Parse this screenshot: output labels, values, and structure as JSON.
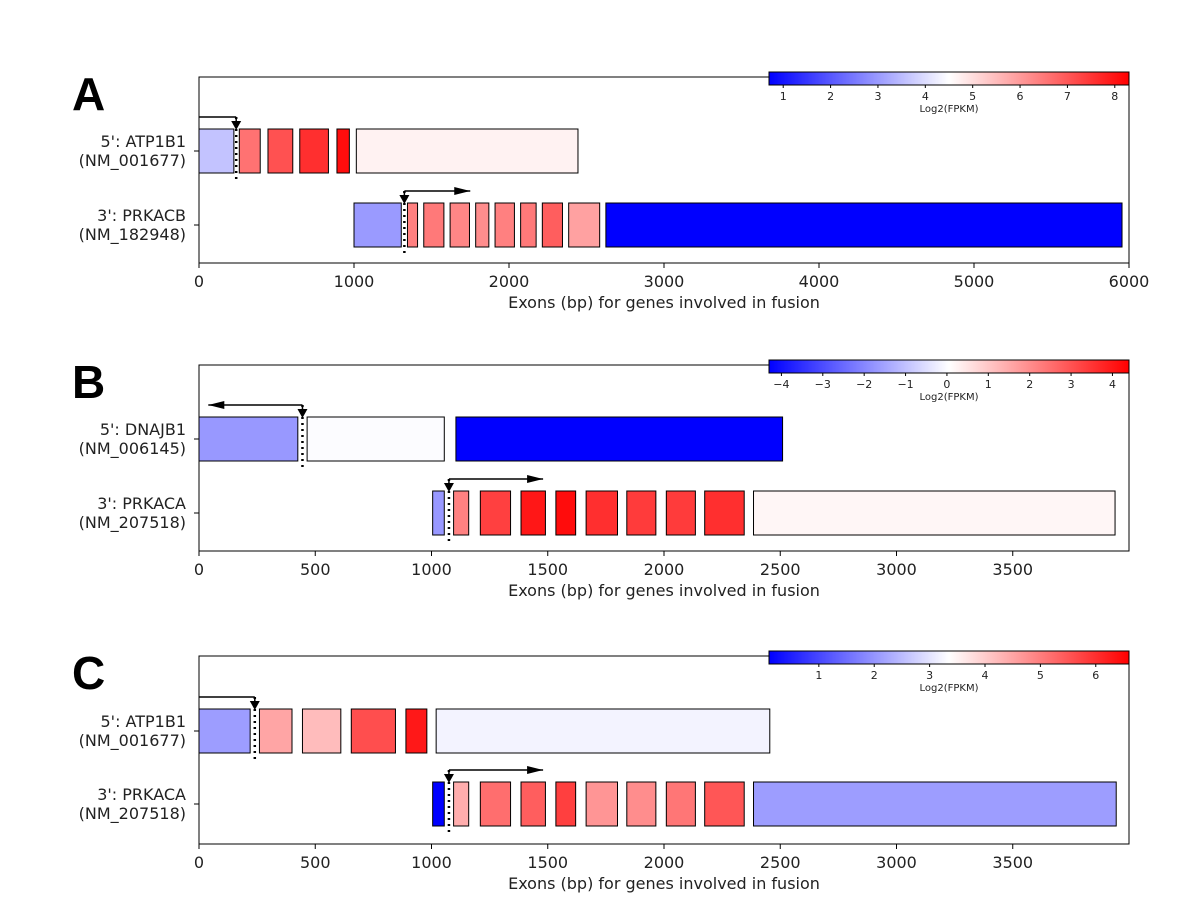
{
  "colormap": {
    "low": "#0000ff",
    "mid": "#ffffff",
    "high": "#ff0000"
  },
  "chart_data": [
    {
      "type": "exon-fusion-diagram",
      "panel": "A",
      "xlabel": "Exons (bp) for genes involved in fusion",
      "xlim": [
        0,
        6000
      ],
      "xticks": [
        0,
        1000,
        2000,
        3000,
        4000,
        5000,
        6000
      ],
      "xtick_labels": [
        "0",
        "1000",
        "2000",
        "3000",
        "4000",
        "5000",
        "6000"
      ],
      "colorbar": {
        "label": "Log2(FPKM)",
        "range": [
          0.7,
          8.3
        ],
        "ticks": [
          1,
          2,
          3,
          4,
          5,
          6,
          7,
          8
        ],
        "tick_labels": [
          "1",
          "2",
          "3",
          "4",
          "5",
          "6",
          "7",
          "8"
        ]
      },
      "genes": [
        {
          "label_line1": "5': ATP1B1",
          "label_line2": "(NM_001677)",
          "breakpoint": 240,
          "arrow": {
            "from": 0,
            "to": 240,
            "direction": "right"
          },
          "exons": [
            {
              "start": 0,
              "end": 225,
              "value": 3.6
            },
            {
              "start": 260,
              "end": 395,
              "value": 6.6
            },
            {
              "start": 445,
              "end": 605,
              "value": 7.1
            },
            {
              "start": 650,
              "end": 835,
              "value": 7.6
            },
            {
              "start": 890,
              "end": 970,
              "value": 8.1
            },
            {
              "start": 1015,
              "end": 2445,
              "value": 4.7
            }
          ]
        },
        {
          "label_line1": "3': PRKACB",
          "label_line2": "(NM_182948)",
          "breakpoint": 1325,
          "arrow": {
            "from": 1325,
            "to": 1750,
            "direction": "right"
          },
          "exons": [
            {
              "start": 1000,
              "end": 1305,
              "value": 3.0
            },
            {
              "start": 1345,
              "end": 1410,
              "value": 6.4
            },
            {
              "start": 1450,
              "end": 1580,
              "value": 6.5
            },
            {
              "start": 1620,
              "end": 1745,
              "value": 6.3
            },
            {
              "start": 1785,
              "end": 1870,
              "value": 6.2
            },
            {
              "start": 1910,
              "end": 2035,
              "value": 6.4
            },
            {
              "start": 2075,
              "end": 2175,
              "value": 6.5
            },
            {
              "start": 2215,
              "end": 2345,
              "value": 6.9
            },
            {
              "start": 2385,
              "end": 2585,
              "value": 5.9
            },
            {
              "start": 2625,
              "end": 5955,
              "value": 0.7
            }
          ]
        }
      ]
    },
    {
      "type": "exon-fusion-diagram",
      "panel": "B",
      "xlabel": "Exons (bp) for genes involved in fusion",
      "xlim": [
        0,
        4000
      ],
      "xticks": [
        0,
        500,
        1000,
        1500,
        2000,
        2500,
        3000,
        3500
      ],
      "xtick_labels": [
        "0",
        "500",
        "1000",
        "1500",
        "2000",
        "2500",
        "3000",
        "3500"
      ],
      "colorbar": {
        "label": "Log2(FPKM)",
        "range": [
          -4.3,
          4.4
        ],
        "ticks": [
          -4,
          -3,
          -2,
          -1,
          0,
          1,
          2,
          3,
          4
        ],
        "tick_labels": [
          "−4",
          "−3",
          "−2",
          "−1",
          "0",
          "1",
          "2",
          "3",
          "4"
        ]
      },
      "genes": [
        {
          "label_line1": "5': DNAJB1",
          "label_line2": "(NM_006145)",
          "breakpoint": 445,
          "arrow": {
            "from": 445,
            "to": 40,
            "direction": "left"
          },
          "exons": [
            {
              "start": 0,
              "end": 425,
              "value": -1.7
            },
            {
              "start": 465,
              "end": 1055,
              "value": 0.0
            },
            {
              "start": 1105,
              "end": 2510,
              "value": -4.3
            }
          ]
        },
        {
          "label_line1": "3': PRKACA",
          "label_line2": "(NM_207518)",
          "breakpoint": 1075,
          "arrow": {
            "from": 1075,
            "to": 1480,
            "direction": "right"
          },
          "exons": [
            {
              "start": 1005,
              "end": 1055,
              "value": -1.7
            },
            {
              "start": 1095,
              "end": 1160,
              "value": 2.2
            },
            {
              "start": 1210,
              "end": 1340,
              "value": 3.3
            },
            {
              "start": 1385,
              "end": 1490,
              "value": 4.0
            },
            {
              "start": 1535,
              "end": 1620,
              "value": 4.2
            },
            {
              "start": 1665,
              "end": 1800,
              "value": 3.6
            },
            {
              "start": 1840,
              "end": 1965,
              "value": 3.4
            },
            {
              "start": 2010,
              "end": 2135,
              "value": 3.4
            },
            {
              "start": 2175,
              "end": 2345,
              "value": 3.6
            },
            {
              "start": 2385,
              "end": 3940,
              "value": 0.2
            }
          ]
        }
      ]
    },
    {
      "type": "exon-fusion-diagram",
      "panel": "C",
      "xlabel": "Exons (bp) for genes involved in fusion",
      "xlim": [
        0,
        4000
      ],
      "xticks": [
        0,
        500,
        1000,
        1500,
        2000,
        2500,
        3000,
        3500
      ],
      "xtick_labels": [
        "0",
        "500",
        "1000",
        "1500",
        "2000",
        "2500",
        "3000",
        "3500"
      ],
      "colorbar": {
        "label": "Log2(FPKM)",
        "range": [
          0.1,
          6.6
        ],
        "ticks": [
          1,
          2,
          3,
          4,
          5,
          6
        ],
        "tick_labels": [
          "1",
          "2",
          "3",
          "4",
          "5",
          "6"
        ]
      },
      "genes": [
        {
          "label_line1": "5': ATP1B1",
          "label_line2": "(NM_001677)",
          "breakpoint": 240,
          "arrow": {
            "from": 0,
            "to": 240,
            "direction": "right"
          },
          "exons": [
            {
              "start": 0,
              "end": 220,
              "value": 2.1
            },
            {
              "start": 260,
              "end": 400,
              "value": 4.5
            },
            {
              "start": 445,
              "end": 610,
              "value": 4.2
            },
            {
              "start": 655,
              "end": 845,
              "value": 5.6
            },
            {
              "start": 890,
              "end": 980,
              "value": 6.3
            },
            {
              "start": 1020,
              "end": 2455,
              "value": 3.2
            }
          ]
        },
        {
          "label_line1": "3': PRKACA",
          "label_line2": "(NM_207518)",
          "breakpoint": 1075,
          "arrow": {
            "from": 1075,
            "to": 1480,
            "direction": "right"
          },
          "exons": [
            {
              "start": 1005,
              "end": 1055,
              "value": 0.1
            },
            {
              "start": 1095,
              "end": 1160,
              "value": 4.4
            },
            {
              "start": 1210,
              "end": 1340,
              "value": 5.2
            },
            {
              "start": 1385,
              "end": 1490,
              "value": 5.4
            },
            {
              "start": 1535,
              "end": 1620,
              "value": 5.8
            },
            {
              "start": 1665,
              "end": 1800,
              "value": 4.7
            },
            {
              "start": 1840,
              "end": 1965,
              "value": 4.8
            },
            {
              "start": 2010,
              "end": 2135,
              "value": 5.1
            },
            {
              "start": 2175,
              "end": 2345,
              "value": 5.5
            },
            {
              "start": 2385,
              "end": 3945,
              "value": 2.1
            }
          ]
        }
      ]
    }
  ]
}
